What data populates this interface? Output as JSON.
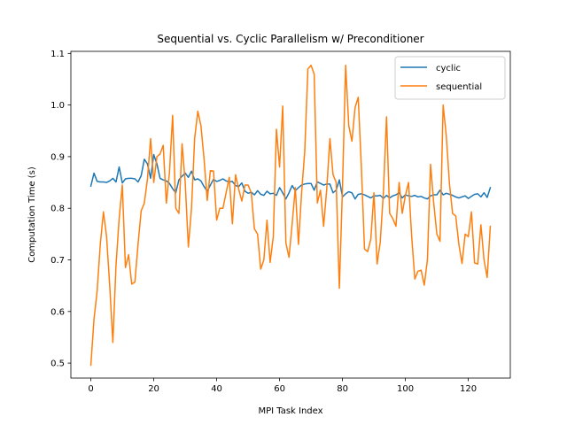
{
  "chart_data": {
    "type": "line",
    "title": "Sequential vs. Cyclic Parallelism w/ Preconditioner",
    "xlabel": "MPI Task Index",
    "ylabel": "Computation Time (s)",
    "xlim": [
      -6.35,
      133.35
    ],
    "ylim": [
      0.471,
      1.104
    ],
    "xticks": [
      0,
      20,
      40,
      60,
      80,
      100,
      120
    ],
    "yticks": [
      0.5,
      0.6,
      0.7,
      0.8,
      0.9,
      1.0,
      1.1
    ],
    "xtick_labels": [
      "0",
      "20",
      "40",
      "60",
      "80",
      "100",
      "120"
    ],
    "ytick_labels": [
      "0.5",
      "0.6",
      "0.7",
      "0.8",
      "0.9",
      "1.0",
      "1.1"
    ],
    "grid": false,
    "legend_position": "upper right",
    "series": [
      {
        "name": "cyclic",
        "color": "#1f77b4",
        "values": [
          0.843,
          0.868,
          0.852,
          0.851,
          0.851,
          0.85,
          0.853,
          0.858,
          0.851,
          0.88,
          0.849,
          0.857,
          0.858,
          0.858,
          0.857,
          0.851,
          0.863,
          0.895,
          0.886,
          0.858,
          0.904,
          0.886,
          0.858,
          0.855,
          0.853,
          0.848,
          0.838,
          0.83,
          0.855,
          0.862,
          0.868,
          0.86,
          0.872,
          0.855,
          0.857,
          0.853,
          0.842,
          0.833,
          0.845,
          0.856,
          0.852,
          0.854,
          0.857,
          0.853,
          0.851,
          0.852,
          0.844,
          0.842,
          0.849,
          0.833,
          0.829,
          0.831,
          0.826,
          0.834,
          0.827,
          0.825,
          0.833,
          0.828,
          0.829,
          0.825,
          0.84,
          0.83,
          0.818,
          0.83,
          0.844,
          0.834,
          0.84,
          0.845,
          0.847,
          0.848,
          0.848,
          0.835,
          0.851,
          0.848,
          0.845,
          0.847,
          0.847,
          0.83,
          0.835,
          0.855,
          0.822,
          0.828,
          0.832,
          0.83,
          0.818,
          0.827,
          0.828,
          0.826,
          0.823,
          0.82,
          0.824,
          0.824,
          0.825,
          0.819,
          0.825,
          0.82,
          0.824,
          0.826,
          0.83,
          0.82,
          0.826,
          0.824,
          0.823,
          0.825,
          0.822,
          0.823,
          0.82,
          0.818,
          0.824,
          0.826,
          0.826,
          0.835,
          0.826,
          0.829,
          0.827,
          0.825,
          0.822,
          0.82,
          0.822,
          0.824,
          0.819,
          0.823,
          0.827,
          0.828,
          0.822,
          0.83,
          0.821,
          0.84
        ]
      },
      {
        "name": "sequential",
        "color": "#ff7f0e",
        "values": [
          0.496,
          0.585,
          0.64,
          0.73,
          0.793,
          0.745,
          0.65,
          0.54,
          0.69,
          0.78,
          0.845,
          0.685,
          0.71,
          0.653,
          0.657,
          0.73,
          0.795,
          0.81,
          0.857,
          0.935,
          0.85,
          0.9,
          0.905,
          0.922,
          0.81,
          0.87,
          0.98,
          0.8,
          0.79,
          0.925,
          0.85,
          0.725,
          0.8,
          0.935,
          0.988,
          0.96,
          0.895,
          0.815,
          0.873,
          0.872,
          0.777,
          0.8,
          0.8,
          0.83,
          0.86,
          0.77,
          0.865,
          0.837,
          0.814,
          0.845,
          0.845,
          0.83,
          0.76,
          0.75,
          0.682,
          0.7,
          0.777,
          0.695,
          0.745,
          0.953,
          0.88,
          0.998,
          0.733,
          0.705,
          0.77,
          0.84,
          0.73,
          0.83,
          0.91,
          1.07,
          1.077,
          1.06,
          0.81,
          0.835,
          0.765,
          0.838,
          0.935,
          0.865,
          0.85,
          0.645,
          0.84,
          1.077,
          0.96,
          0.93,
          0.995,
          1.015,
          0.88,
          0.721,
          0.716,
          0.74,
          0.83,
          0.692,
          0.734,
          0.83,
          0.977,
          0.79,
          0.78,
          0.765,
          0.85,
          0.79,
          0.825,
          0.85,
          0.745,
          0.663,
          0.678,
          0.68,
          0.651,
          0.7,
          0.885,
          0.81,
          0.75,
          0.736,
          1.0,
          0.94,
          0.848,
          0.79,
          0.785,
          0.73,
          0.693,
          0.75,
          0.745,
          0.793,
          0.694,
          0.692,
          0.768,
          0.7,
          0.666,
          0.765
        ]
      }
    ]
  }
}
